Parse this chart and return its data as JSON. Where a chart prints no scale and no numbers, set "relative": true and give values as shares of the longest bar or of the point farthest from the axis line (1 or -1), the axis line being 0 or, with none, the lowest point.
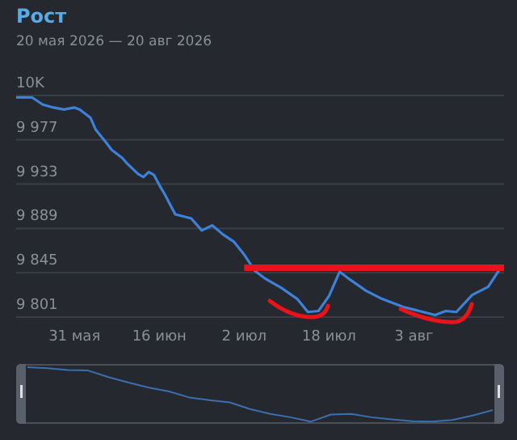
{
  "chart_data": [
    {
      "type": "line",
      "title": "Рост",
      "subtitle": "20 мая 2026 — 20 авг 2026",
      "xlim": [
        "2026-05-20",
        "2026-08-20"
      ],
      "xticks": [
        {
          "value": "2026-05-31",
          "label": "31 мая"
        },
        {
          "value": "2026-06-16",
          "label": "16 июн"
        },
        {
          "value": "2026-07-02",
          "label": "2 июл"
        },
        {
          "value": "2026-07-18",
          "label": "18 июл"
        },
        {
          "value": "2026-08-03",
          "label": "3 авг"
        }
      ],
      "ylim": [
        9801,
        10021
      ],
      "yticks": [
        {
          "value": 9801,
          "label": "9 801"
        },
        {
          "value": 9845,
          "label": "9 845"
        },
        {
          "value": 9889,
          "label": "9 889"
        },
        {
          "value": 9933,
          "label": "9 933"
        },
        {
          "value": 9977,
          "label": "9 977"
        },
        {
          "value": 10021,
          "label": "10K"
        }
      ],
      "grid": "y",
      "marker": "none",
      "series": [
        {
          "color": "#3d82d8",
          "x": [
            "2026-05-20",
            "2026-05-23",
            "2026-05-25",
            "2026-05-27",
            "2026-05-29",
            "2026-05-31",
            "2026-06-01",
            "2026-06-03",
            "2026-06-04",
            "2026-06-06",
            "2026-06-07",
            "2026-06-09",
            "2026-06-10",
            "2026-06-12",
            "2026-06-13",
            "2026-06-14",
            "2026-06-15",
            "2026-06-16",
            "2026-06-17",
            "2026-06-19",
            "2026-06-22",
            "2026-06-24",
            "2026-06-26",
            "2026-06-28",
            "2026-06-30",
            "2026-07-02",
            "2026-07-04",
            "2026-07-06",
            "2026-07-09",
            "2026-07-12",
            "2026-07-14",
            "2026-07-16",
            "2026-07-18",
            "2026-07-20",
            "2026-07-22",
            "2026-07-25",
            "2026-07-28",
            "2026-08-01",
            "2026-08-04",
            "2026-08-07",
            "2026-08-09",
            "2026-08-11",
            "2026-08-14",
            "2026-08-17",
            "2026-08-19"
          ],
          "values": [
            10019,
            10019,
            10012,
            10009,
            10007,
            10009,
            10007,
            9999,
            9987,
            9974,
            9967,
            9959,
            9953,
            9943,
            9940,
            9945,
            9942,
            9932,
            9923,
            9903,
            9899,
            9887,
            9892,
            9883,
            9876,
            9863,
            9847,
            9839,
            9830,
            9819,
            9806,
            9807,
            9822,
            9846,
            9838,
            9827,
            9819,
            9811,
            9807,
            9803,
            9807,
            9806,
            9823,
            9831,
            9847
          ]
        },
        {
          "type": "line",
          "color": "#e8141a",
          "x": [
            "2026-07-02",
            "2026-08-20"
          ],
          "values": [
            9850,
            9850
          ]
        }
      ]
    },
    {
      "type": "line",
      "relative": true,
      "tick_labels": false,
      "marker": "none",
      "categories": [
        null,
        null,
        null,
        null,
        null,
        null,
        null,
        null,
        null,
        null,
        null,
        null,
        null,
        null,
        null,
        null,
        null,
        null,
        null,
        null,
        null,
        null,
        null,
        null
      ],
      "series": [
        {
          "color": "#3a6fb0",
          "values": [
            1,
            0.98,
            0.95,
            0.94,
            0.82,
            0.72,
            0.63,
            0.56,
            0.45,
            0.4,
            0.36,
            0.24,
            0.15,
            0.09,
            0.01,
            0.14,
            0.15,
            0.09,
            0.05,
            0.02,
            0.01,
            0.04,
            0.12,
            0.22
          ]
        }
      ]
    }
  ]
}
